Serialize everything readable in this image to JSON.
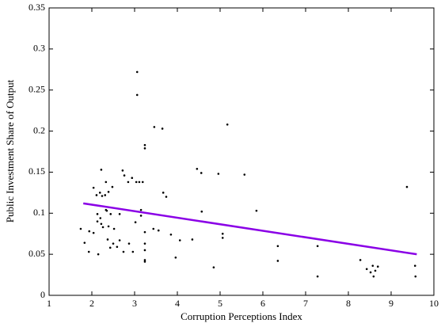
{
  "chart_data": {
    "type": "scatter",
    "xlabel": "Corruption Perceptions Index",
    "ylabel": "Public Investment Share of Output",
    "xlim": [
      1,
      10
    ],
    "xticks": [
      1,
      2,
      3,
      4,
      5,
      6,
      7,
      8,
      9,
      10
    ],
    "ylim": [
      0,
      0.35
    ],
    "yticks": [
      0,
      0.05,
      0.1,
      0.15,
      0.2,
      0.25,
      0.3,
      0.35
    ],
    "series": [
      {
        "type": "scatter",
        "color": "#000000",
        "x": [
          1.74,
          1.83,
          1.93,
          1.94,
          2.04,
          2.04,
          2.11,
          2.13,
          2.13,
          2.15,
          2.19,
          2.2,
          2.22,
          2.22,
          2.24,
          2.26,
          2.31,
          2.33,
          2.33,
          2.35,
          2.37,
          2.39,
          2.39,
          2.43,
          2.44,
          2.48,
          2.5,
          2.52,
          2.59,
          2.65,
          2.65,
          2.74,
          2.72,
          2.76,
          2.85,
          2.87,
          2.94,
          2.96,
          3.02,
          3.04,
          3.06,
          3.06,
          3.11,
          3.15,
          3.15,
          3.19,
          3.24,
          3.24,
          3.24,
          3.24,
          3.24,
          3.24,
          3.24,
          3.44,
          3.46,
          3.56,
          3.65,
          3.67,
          3.74,
          3.85,
          3.96,
          4.06,
          4.35,
          4.46,
          4.56,
          4.57,
          4.85,
          4.96,
          5.06,
          5.06,
          5.17,
          5.57,
          5.85,
          6.35,
          6.35,
          7.28,
          7.28,
          8.28,
          8.43,
          8.52,
          8.57,
          8.59,
          8.63,
          8.69,
          9.37,
          9.56,
          9.57
        ],
        "values": [
          0.081,
          0.064,
          0.053,
          0.078,
          0.131,
          0.076,
          0.122,
          0.099,
          0.09,
          0.05,
          0.125,
          0.094,
          0.153,
          0.087,
          0.121,
          0.083,
          0.122,
          0.104,
          0.138,
          0.103,
          0.068,
          0.126,
          0.084,
          0.058,
          0.099,
          0.132,
          0.063,
          0.081,
          0.059,
          0.099,
          0.067,
          0.053,
          0.152,
          0.146,
          0.138,
          0.063,
          0.143,
          0.053,
          0.089,
          0.138,
          0.272,
          0.244,
          0.138,
          0.104,
          0.097,
          0.138,
          0.183,
          0.179,
          0.077,
          0.063,
          0.043,
          0.041,
          0.055,
          0.081,
          0.205,
          0.079,
          0.203,
          0.125,
          0.12,
          0.074,
          0.046,
          0.067,
          0.068,
          0.154,
          0.149,
          0.102,
          0.034,
          0.148,
          0.075,
          0.07,
          0.208,
          0.147,
          0.103,
          0.06,
          0.042,
          0.06,
          0.023,
          0.043,
          0.032,
          0.028,
          0.036,
          0.023,
          0.03,
          0.035,
          0.132,
          0.036,
          0.023
        ]
      },
      {
        "type": "line",
        "color": "#8a00e6",
        "x": [
          1.8,
          9.6
        ],
        "values": [
          0.112,
          0.05
        ]
      }
    ]
  }
}
